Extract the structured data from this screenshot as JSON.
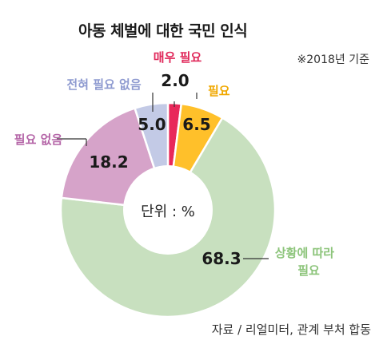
{
  "chart_data": {
    "type": "pie",
    "title": "아동 체벌에 대한 국민 인식",
    "note": "※2018년 기준",
    "source": "자료 / 리얼미터, 관계 부처 합동",
    "center_label": "단위 : %",
    "slices": [
      {
        "label": "매우 필요",
        "value": 2.0,
        "value_text": "2.0",
        "color": "#e8285a"
      },
      {
        "label": "필요",
        "value": 6.5,
        "value_text": "6.5",
        "color": "#ffc02a"
      },
      {
        "label": "상황에 따라 필요",
        "label_lines": [
          "상황에 따라",
          "필요"
        ],
        "value": 68.3,
        "value_text": "68.3",
        "color": "#c8e0bf"
      },
      {
        "label": "필요 없음",
        "value": 18.2,
        "value_text": "18.2",
        "color": "#d6a3c9"
      },
      {
        "label": "전혀 필요 없음",
        "value": 5.0,
        "value_text": "5.0",
        "color": "#c3cae6"
      }
    ],
    "label_colors": [
      "#e0285a",
      "#f0a800",
      "#8cc47a",
      "#b566a8",
      "#8e9ad0"
    ]
  }
}
